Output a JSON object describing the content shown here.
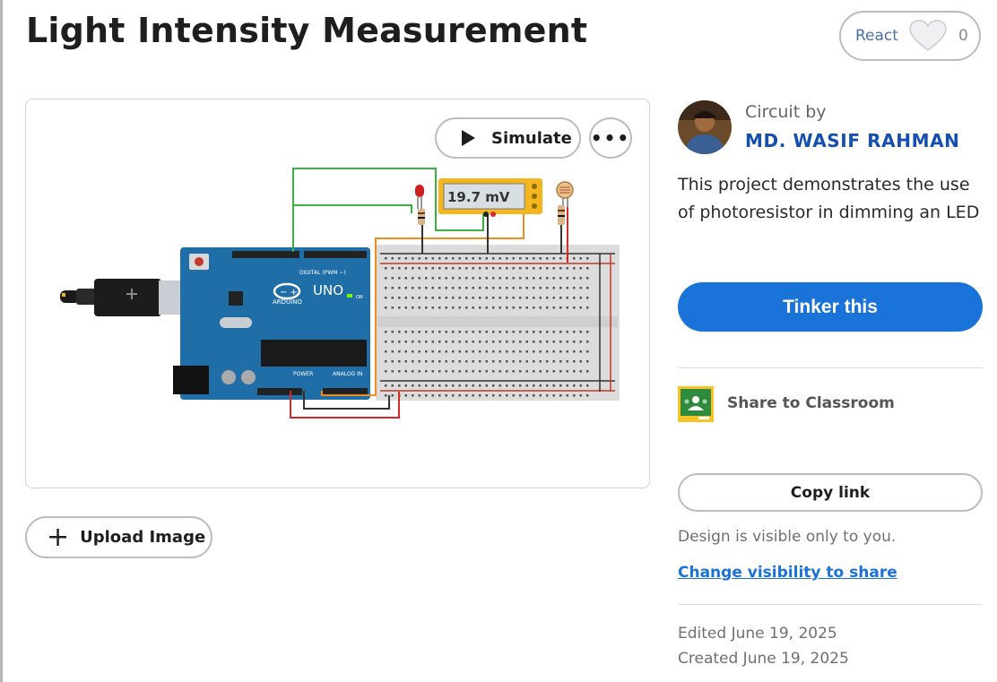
{
  "page": {
    "title": "Light Intensity Measurement"
  },
  "react": {
    "label": "React",
    "count": "0",
    "icon": "heart-icon"
  },
  "preview": {
    "simulate_label": "Simulate",
    "more_label": "•••",
    "circuit": {
      "board_label": "UNO",
      "board_brand": "ARDUINO",
      "board_digital_label": "DIGITAL (PWM ~)",
      "board_power_label": "POWER",
      "board_analog_label": "ANALOG IN",
      "board_on_label": "ON",
      "multimeter_reading": "19.7 mV"
    }
  },
  "upload": {
    "label": "Upload Image",
    "icon": "plus-icon"
  },
  "author": {
    "circuit_by": "Circuit by",
    "name": "MD. WASIF RAHMAN"
  },
  "description": "This project demonstrates the use of photoresistor in dimming an LED",
  "actions": {
    "tinker_label": "Tinker this",
    "classroom_label": "Share to Classroom",
    "copy_link_label": "Copy link"
  },
  "visibility": {
    "status": "Design is visible only to you.",
    "change_link": "Change visibility to share"
  },
  "dates": {
    "edited": "Edited June 19, 2025",
    "created": "Created June 19, 2025"
  },
  "colors": {
    "primary_blue": "#1a73d9",
    "author_blue": "#1550b0",
    "arduino_teal": "#1f6ea8",
    "breadboard": "#dcdcdc",
    "classroom_green": "#2e8b3e",
    "classroom_yellow": "#f7c325"
  }
}
